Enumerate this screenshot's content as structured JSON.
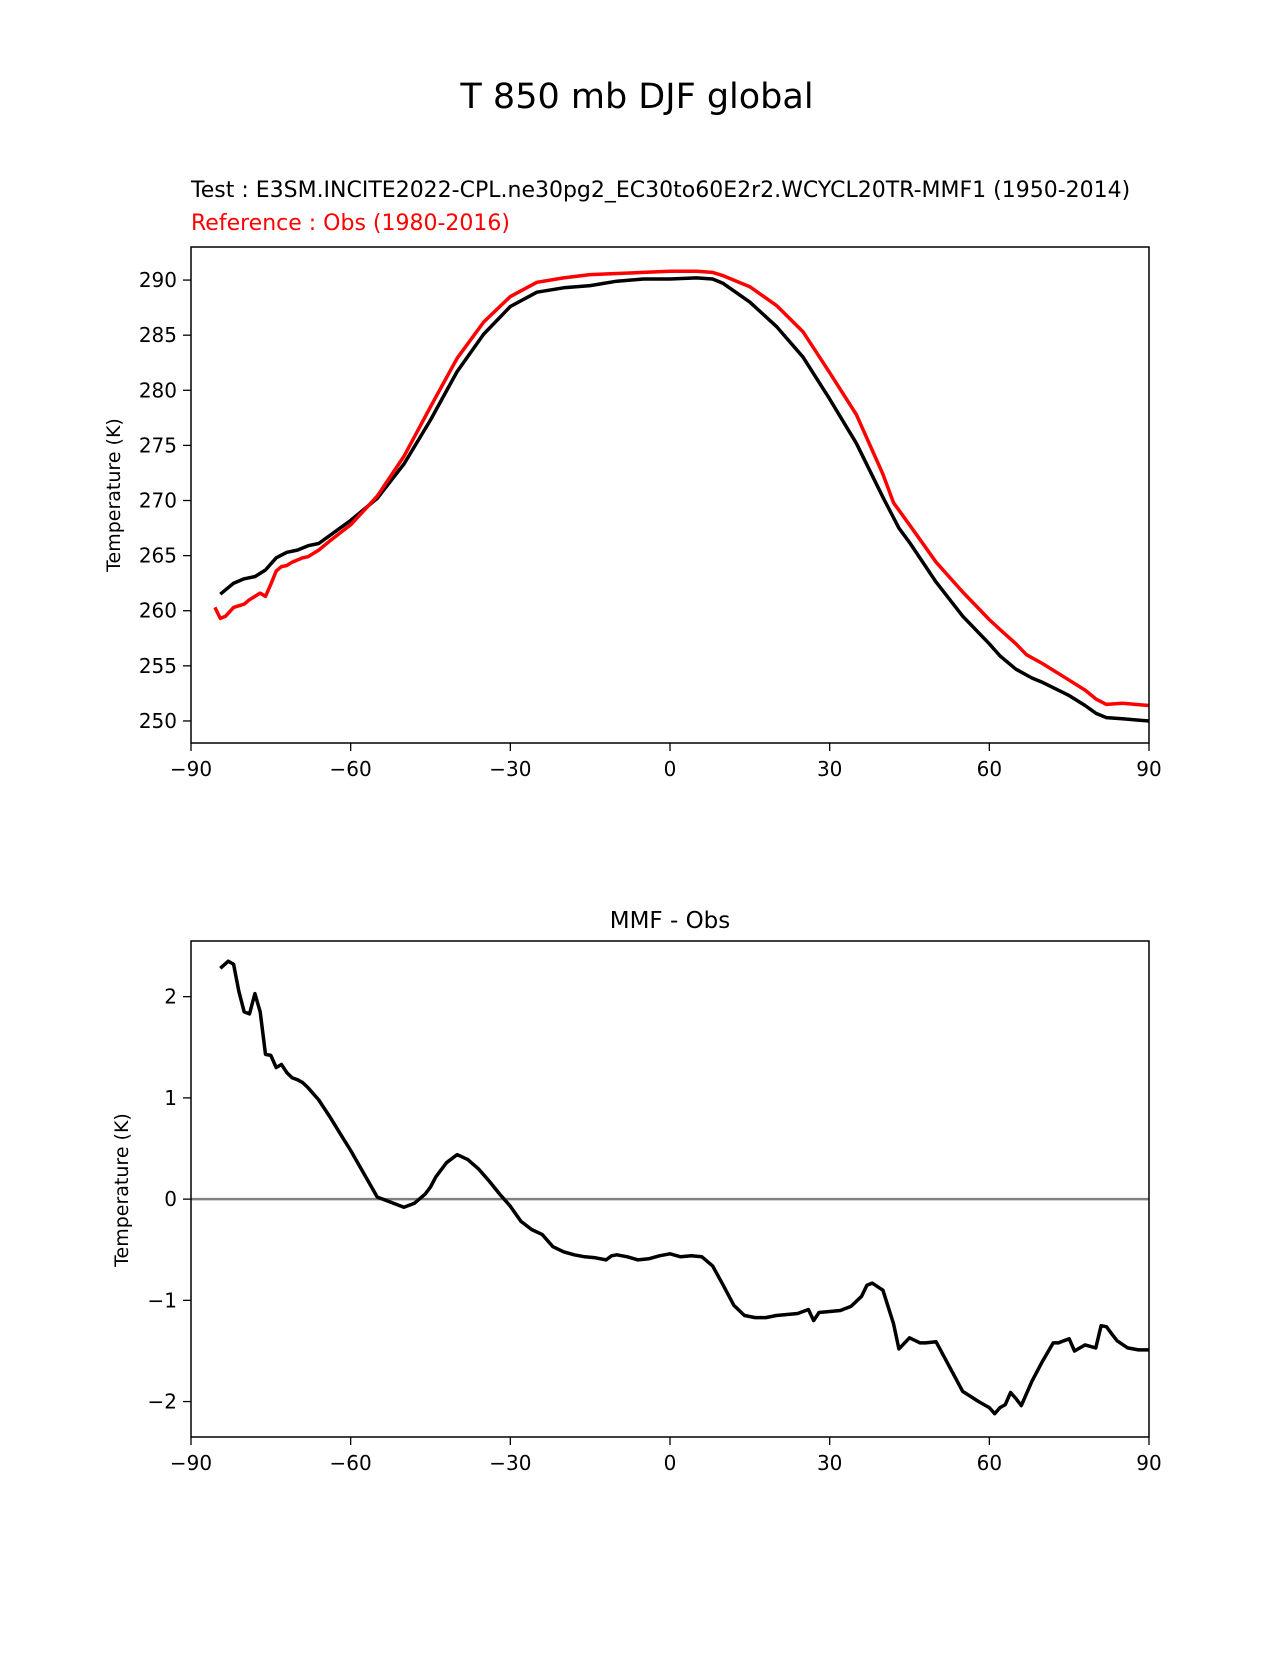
{
  "figure": {
    "suptitle": "T 850 mb DJF global"
  },
  "chart_data": [
    {
      "type": "line",
      "title_test": "Test : E3SM.INCITE2022-CPL.ne30pg2_EC30to60E2r2.WCYCL20TR-MMF1 (1950-2014)",
      "title_reference": "Reference : Obs (1980-2016)",
      "title_reference_color": "#ff0000",
      "xlabel": "",
      "ylabel": "Temperature (K)",
      "xlim": [
        -90,
        90
      ],
      "ylim": [
        248,
        293
      ],
      "xticks": [
        -90,
        -60,
        -30,
        0,
        30,
        60,
        90
      ],
      "xtick_labels": [
        "−90",
        "−60",
        "−30",
        "0",
        "30",
        "60",
        "90"
      ],
      "yticks": [
        250,
        255,
        260,
        265,
        270,
        275,
        280,
        285,
        290
      ],
      "ytick_labels": [
        "250",
        "255",
        "260",
        "265",
        "270",
        "275",
        "280",
        "285",
        "290"
      ],
      "grid": false,
      "series": [
        {
          "name": "Test (MMF)",
          "color": "#000000",
          "x": [
            -84.5,
            -82,
            -80,
            -78,
            -76,
            -74,
            -72,
            -70,
            -68,
            -66,
            -64,
            -60,
            -55,
            -50,
            -45,
            -40,
            -35,
            -30,
            -25,
            -20,
            -15,
            -10,
            -5,
            0,
            5,
            8,
            10,
            15,
            20,
            25,
            30,
            35,
            40,
            43,
            45,
            50,
            55,
            60,
            62,
            65,
            68,
            70,
            75,
            78,
            80,
            82,
            85,
            90
          ],
          "y": [
            261.5,
            262.5,
            262.9,
            263.1,
            263.7,
            264.8,
            265.3,
            265.5,
            265.9,
            266.1,
            266.8,
            268.2,
            270.2,
            273.3,
            277.3,
            281.7,
            285.1,
            287.6,
            288.9,
            289.3,
            289.5,
            289.9,
            290.1,
            290.1,
            290.2,
            290.1,
            289.7,
            288.0,
            285.8,
            283.0,
            279.2,
            275.2,
            270.3,
            267.5,
            266.2,
            262.6,
            259.5,
            257.0,
            255.9,
            254.7,
            253.9,
            253.5,
            252.3,
            251.4,
            250.7,
            250.3,
            250.2,
            250.0
          ]
        },
        {
          "name": "Reference (Obs)",
          "color": "#ff0000",
          "x": [
            -85.5,
            -84.5,
            -83.5,
            -82,
            -80,
            -79,
            -78,
            -77,
            -76,
            -75,
            -74,
            -73,
            -72,
            -71,
            -70,
            -69,
            -68,
            -67,
            -66,
            -64,
            -60,
            -55,
            -50,
            -45,
            -40,
            -35,
            -30,
            -25,
            -20,
            -15,
            -10,
            -5,
            0,
            5,
            8,
            10,
            15,
            20,
            25,
            30,
            35,
            40,
            42,
            45,
            50,
            55,
            60,
            62,
            65,
            67,
            70,
            75,
            78,
            80,
            82,
            85,
            90
          ],
          "y": [
            260.3,
            259.3,
            259.5,
            260.3,
            260.6,
            261.0,
            261.3,
            261.6,
            261.3,
            262.4,
            263.6,
            264.0,
            264.1,
            264.4,
            264.6,
            264.8,
            264.9,
            265.2,
            265.5,
            266.3,
            267.8,
            270.4,
            274.0,
            278.5,
            282.9,
            286.2,
            288.5,
            289.8,
            290.2,
            290.5,
            290.6,
            290.7,
            290.8,
            290.8,
            290.7,
            290.4,
            289.4,
            287.7,
            285.3,
            281.6,
            277.8,
            272.4,
            269.8,
            267.8,
            264.4,
            261.7,
            259.2,
            258.3,
            257.0,
            256.0,
            255.2,
            253.7,
            252.8,
            252.0,
            251.5,
            251.6,
            251.4
          ]
        }
      ]
    },
    {
      "type": "line",
      "title": "MMF - Obs",
      "xlabel": "",
      "ylabel": "Temperature (K)",
      "xlim": [
        -90,
        90
      ],
      "ylim": [
        -2.35,
        2.55
      ],
      "xticks": [
        -90,
        -60,
        -30,
        0,
        30,
        60,
        90
      ],
      "xtick_labels": [
        "−90",
        "−60",
        "−30",
        "0",
        "30",
        "60",
        "90"
      ],
      "yticks": [
        -2,
        -1,
        0,
        1,
        2
      ],
      "ytick_labels": [
        "−2",
        "−1",
        "0",
        "1",
        "2"
      ],
      "grid": false,
      "zero_line": {
        "value": 0,
        "color": "#808080"
      },
      "series": [
        {
          "name": "MMF - Obs",
          "color": "#000000",
          "x": [
            -84.5,
            -83,
            -82,
            -81,
            -80,
            -79,
            -78,
            -77,
            -76,
            -75,
            -74,
            -73,
            -72,
            -71,
            -70,
            -69,
            -68,
            -66,
            -64,
            -62,
            -60,
            -55,
            -50,
            -48,
            -46,
            -45,
            -44,
            -42,
            -40,
            -38,
            -36,
            -35,
            -34,
            -32,
            -30,
            -28,
            -26,
            -24,
            -22,
            -20,
            -18,
            -16,
            -14,
            -12,
            -11,
            -10,
            -8,
            -6,
            -4,
            -2,
            0,
            2,
            4,
            6,
            8,
            10,
            12,
            14,
            16,
            18,
            20,
            22,
            24,
            26,
            27,
            28,
            30,
            32,
            34,
            36,
            37,
            38,
            40,
            42,
            43,
            45,
            47,
            48,
            50,
            55,
            58,
            60,
            61,
            62,
            63,
            64,
            65,
            66,
            68,
            70,
            72,
            73,
            74,
            75,
            76,
            78,
            80,
            81,
            82,
            83,
            84,
            86,
            88,
            90
          ],
          "y": [
            2.28,
            2.35,
            2.32,
            2.05,
            1.85,
            1.83,
            2.03,
            1.85,
            1.43,
            1.42,
            1.3,
            1.33,
            1.25,
            1.2,
            1.18,
            1.15,
            1.1,
            0.98,
            0.82,
            0.65,
            0.48,
            0.02,
            -0.08,
            -0.04,
            0.05,
            0.12,
            0.22,
            0.36,
            0.44,
            0.39,
            0.3,
            0.24,
            0.18,
            0.05,
            -0.07,
            -0.22,
            -0.3,
            -0.35,
            -0.47,
            -0.52,
            -0.55,
            -0.57,
            -0.58,
            -0.6,
            -0.56,
            -0.55,
            -0.57,
            -0.6,
            -0.59,
            -0.56,
            -0.54,
            -0.57,
            -0.56,
            -0.57,
            -0.66,
            -0.85,
            -1.05,
            -1.15,
            -1.17,
            -1.17,
            -1.15,
            -1.14,
            -1.13,
            -1.09,
            -1.2,
            -1.12,
            -1.11,
            -1.1,
            -1.06,
            -0.96,
            -0.85,
            -0.83,
            -0.9,
            -1.23,
            -1.48,
            -1.37,
            -1.42,
            -1.42,
            -1.41,
            -1.9,
            -2.0,
            -2.06,
            -2.12,
            -2.06,
            -2.03,
            -1.91,
            -1.97,
            -2.04,
            -1.8,
            -1.6,
            -1.42,
            -1.42,
            -1.4,
            -1.38,
            -1.5,
            -1.44,
            -1.47,
            -1.25,
            -1.26,
            -1.33,
            -1.4,
            -1.47,
            -1.49,
            -1.49
          ]
        }
      ]
    }
  ]
}
